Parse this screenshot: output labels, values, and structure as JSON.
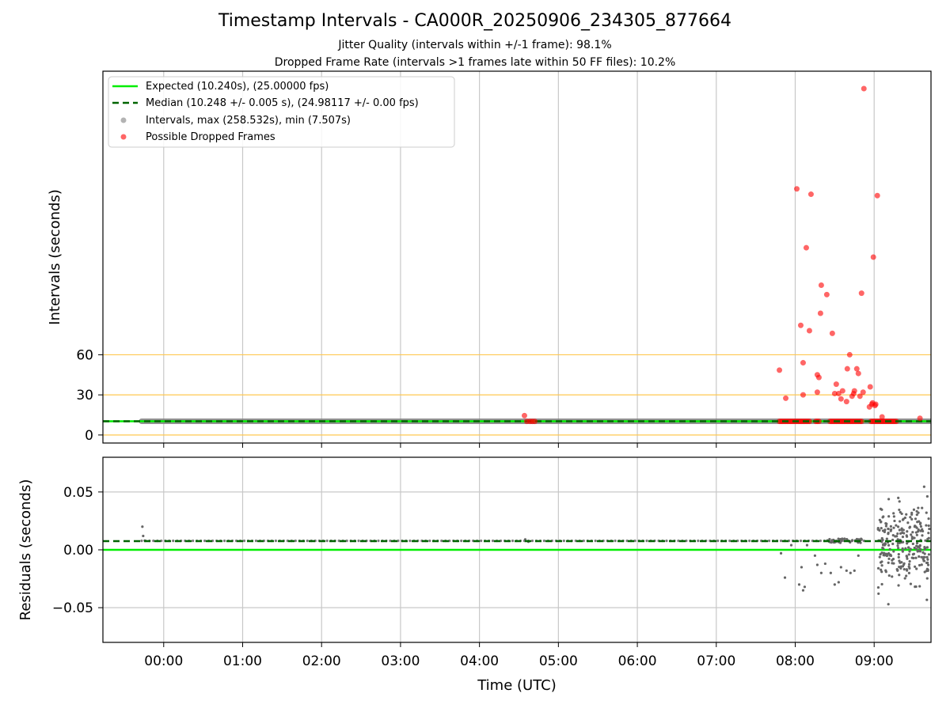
{
  "figure": {
    "title": "Timestamp Intervals - CA000R_20250906_234305_877664",
    "subtitle_jitter": "Jitter Quality (intervals within +/-1 frame): 98.1%",
    "subtitle_dropped": "Dropped Frame Rate (intervals >1 frames late within 50 FF files): 10.2%"
  },
  "colors": {
    "expected": "#00ee00",
    "median": "#006400",
    "intervals": "#808080",
    "dropped": "#ff0000",
    "threshold": "#ffc850",
    "grid": "#c8c8c8"
  },
  "chart_data": [
    {
      "type": "scatter",
      "panel": "intervals",
      "xlabel": "Time (UTC)",
      "ylabel": "Intervals (seconds)",
      "x_ticks": [
        "00:00",
        "01:00",
        "02:00",
        "03:00",
        "04:00",
        "05:00",
        "06:00",
        "07:00",
        "08:00",
        "09:00"
      ],
      "x_tick_hours": [
        0,
        1,
        2,
        3,
        4,
        5,
        6,
        7,
        8,
        9
      ],
      "xlim_hours": [
        -0.77,
        9.72
      ],
      "y_ticks": [
        0,
        30,
        60
      ],
      "ylim": [
        -6,
        272
      ],
      "threshold_lines": [
        0,
        30,
        60
      ],
      "grid": "vertical",
      "legend_position": "upper-left",
      "legend": [
        "Expected (10.240s), (25.00000 fps)",
        "Median (10.248 +/- 0.005 s), (24.98117 +/- 0.00 fps)",
        "Intervals, max (258.532s), min (7.507s)",
        "Possible Dropped Frames"
      ],
      "expected_interval": 10.24,
      "median_interval": 10.248,
      "intervals_band": {
        "start_hour": -0.28,
        "end_hour": 9.72,
        "value": 10.25
      },
      "dropped_frames": [
        {
          "x": 4.57,
          "y": 14.5
        },
        {
          "x": 4.6,
          "y": 10.2
        },
        {
          "x": 4.64,
          "y": 10.2
        },
        {
          "x": 4.67,
          "y": 10.2
        },
        {
          "x": 4.7,
          "y": 10.2
        },
        {
          "x": 7.8,
          "y": 48.5
        },
        {
          "x": 7.88,
          "y": 27.5
        },
        {
          "x": 8.02,
          "y": 184
        },
        {
          "x": 8.07,
          "y": 82
        },
        {
          "x": 8.1,
          "y": 54
        },
        {
          "x": 8.1,
          "y": 30
        },
        {
          "x": 8.14,
          "y": 140
        },
        {
          "x": 8.18,
          "y": 78
        },
        {
          "x": 8.2,
          "y": 180
        },
        {
          "x": 8.28,
          "y": 32
        },
        {
          "x": 8.28,
          "y": 45
        },
        {
          "x": 8.3,
          "y": 43
        },
        {
          "x": 8.32,
          "y": 91
        },
        {
          "x": 8.33,
          "y": 112
        },
        {
          "x": 8.4,
          "y": 105
        },
        {
          "x": 8.47,
          "y": 76
        },
        {
          "x": 8.5,
          "y": 31
        },
        {
          "x": 8.52,
          "y": 38
        },
        {
          "x": 8.55,
          "y": 31
        },
        {
          "x": 8.58,
          "y": 27
        },
        {
          "x": 8.6,
          "y": 33
        },
        {
          "x": 8.65,
          "y": 25
        },
        {
          "x": 8.66,
          "y": 49.5
        },
        {
          "x": 8.69,
          "y": 60
        },
        {
          "x": 8.72,
          "y": 29
        },
        {
          "x": 8.74,
          "y": 31
        },
        {
          "x": 8.75,
          "y": 33
        },
        {
          "x": 8.78,
          "y": 49.5
        },
        {
          "x": 8.8,
          "y": 46
        },
        {
          "x": 8.82,
          "y": 29
        },
        {
          "x": 8.84,
          "y": 106
        },
        {
          "x": 8.86,
          "y": 32
        },
        {
          "x": 8.87,
          "y": 259
        },
        {
          "x": 8.94,
          "y": 21
        },
        {
          "x": 8.95,
          "y": 36
        },
        {
          "x": 8.97,
          "y": 23
        },
        {
          "x": 8.98,
          "y": 24
        },
        {
          "x": 8.99,
          "y": 133
        },
        {
          "x": 9.01,
          "y": 22
        },
        {
          "x": 9.02,
          "y": 23
        },
        {
          "x": 9.04,
          "y": 179
        },
        {
          "x": 9.1,
          "y": 13.5
        },
        {
          "x": 9.58,
          "y": 12.5
        }
      ],
      "dropped_clusters_near_median": [
        {
          "from_hour": 7.8,
          "to_hour": 8.18
        },
        {
          "from_hour": 8.26,
          "to_hour": 8.3
        },
        {
          "from_hour": 8.44,
          "to_hour": 8.84
        },
        {
          "from_hour": 8.96,
          "to_hour": 9.28
        }
      ]
    },
    {
      "type": "scatter",
      "panel": "residuals",
      "xlabel": "Time (UTC)",
      "ylabel": "Residuals (seconds)",
      "y_ticks": [
        -0.05,
        0.0,
        0.05
      ],
      "y_tick_labels": [
        "−0.05",
        "0.00",
        "0.05"
      ],
      "ylim": [
        -0.08,
        0.08
      ],
      "grid": "both",
      "expected_residual": 0.0,
      "median_residual": 0.0075,
      "residual_points": [
        {
          "x": -0.27,
          "y": 0.02
        },
        {
          "x": -0.26,
          "y": 0.012
        },
        {
          "x": -0.24,
          "y": 0.008
        },
        {
          "x": 4.58,
          "y": 0.009
        },
        {
          "x": 4.62,
          "y": 0.007
        },
        {
          "x": 7.82,
          "y": -0.003
        },
        {
          "x": 7.87,
          "y": -0.024
        },
        {
          "x": 7.95,
          "y": 0.004
        },
        {
          "x": 8.05,
          "y": -0.03
        },
        {
          "x": 8.08,
          "y": -0.015
        },
        {
          "x": 8.1,
          "y": -0.035
        },
        {
          "x": 8.12,
          "y": -0.032
        },
        {
          "x": 8.15,
          "y": 0.004
        },
        {
          "x": 8.25,
          "y": -0.005
        },
        {
          "x": 8.28,
          "y": -0.013
        },
        {
          "x": 8.33,
          "y": -0.02
        },
        {
          "x": 8.38,
          "y": -0.012
        },
        {
          "x": 8.45,
          "y": -0.02
        },
        {
          "x": 8.5,
          "y": -0.03
        },
        {
          "x": 8.55,
          "y": -0.028
        },
        {
          "x": 8.58,
          "y": -0.015
        },
        {
          "x": 8.65,
          "y": -0.018
        },
        {
          "x": 8.7,
          "y": -0.02
        },
        {
          "x": 8.75,
          "y": -0.018
        },
        {
          "x": 8.8,
          "y": -0.005
        },
        {
          "x": 9.18,
          "y": -0.047
        }
      ]
    }
  ]
}
